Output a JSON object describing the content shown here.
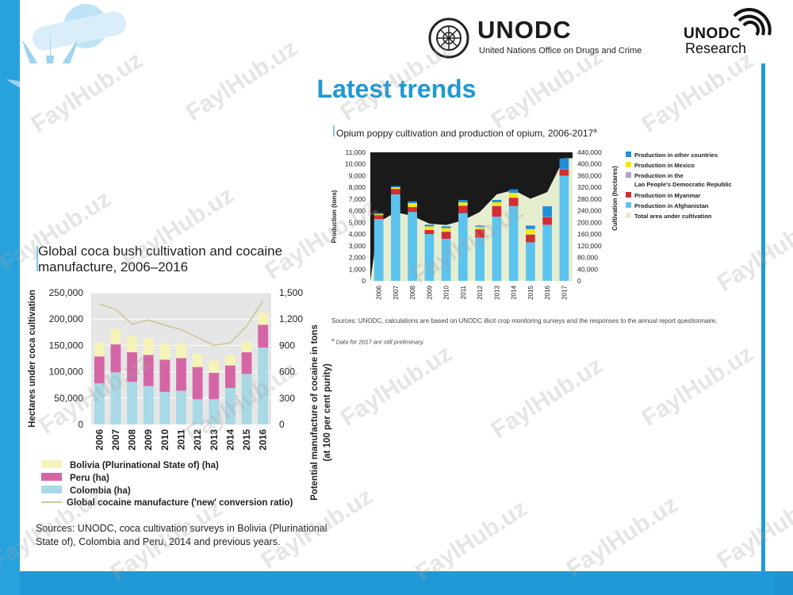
{
  "slide": {
    "title": "Latest trends"
  },
  "logos": {
    "unodc_title": "UNODC",
    "unodc_subtitle": "United Nations Office on Drugs and Crime",
    "research_title": "UNODC",
    "research_subtitle": "Research"
  },
  "watermark": "FaylHub.uz",
  "colors": {
    "background_blue": "#1f9ad6",
    "title_blue": "#1f98d4",
    "bolivia": "#f5f3b8",
    "peru": "#d566a6",
    "colombia": "#a9d8e6",
    "cocaine_line": "#cdc79a",
    "opium_bg": "#1a1a1a",
    "area": "#e6eed0",
    "afghanistan": "#5cc3ef",
    "myanmar": "#d52b35",
    "lao": "#b99bc8",
    "mexico": "#f6e51a",
    "other": "#1e8fd8"
  },
  "chart_data": [
    {
      "type": "bar",
      "stacked": true,
      "title": "Global coca bush cultivation and cocaine manufacture, 2006–2016",
      "ylabel": "Hectares under coca cultivation",
      "y2label": "Potential manufacture of cocaine in tons (at 100 per cent purity)",
      "ylim": [
        0,
        250000
      ],
      "y2lim": [
        0,
        1500
      ],
      "yticks": [
        "0",
        "50,000",
        "100,000",
        "150,000",
        "200,000",
        "250,000"
      ],
      "y2ticks": [
        "0",
        "300",
        "600",
        "900",
        "1,200",
        "1,500"
      ],
      "categories": [
        "2006",
        "2007",
        "2008",
        "2009",
        "2010",
        "2011",
        "2012",
        "2013",
        "2014",
        "2015",
        "2016"
      ],
      "series": [
        {
          "name": "Colombia (ha)",
          "values": [
            78000,
            99000,
            81000,
            73000,
            62000,
            64000,
            48000,
            48000,
            69000,
            96000,
            146000
          ]
        },
        {
          "name": "Peru (ha)",
          "values": [
            51000,
            53000,
            56000,
            59000,
            61000,
            62000,
            61000,
            50000,
            43000,
            41000,
            43000
          ]
        },
        {
          "name": "Bolivia (Plurinational State of) (ha)",
          "values": [
            27000,
            29000,
            30000,
            31000,
            31000,
            27000,
            25000,
            23000,
            20000,
            20000,
            23000
          ]
        },
        {
          "name": "Global cocaine manufacture ('new' conversion ratio)",
          "axis": "right",
          "type": "line",
          "values": [
            1370,
            1310,
            1140,
            1190,
            1130,
            1080,
            990,
            900,
            930,
            1120,
            1410
          ]
        }
      ],
      "legend": [
        "Bolivia (Plurinational State of) (ha)",
        "Peru (ha)",
        "Colombia (ha)",
        "Global cocaine manufacture ('new' conversion ratio)"
      ],
      "legend_position": "bottom",
      "source": "Sources: UNODC, coca cultivation surveys in Bolivia (Plurinational State of), Colombia and Peru, 2014 and previous years."
    },
    {
      "type": "bar",
      "stacked": true,
      "title": "Opium poppy cultivation and production of opium, 2006-2017",
      "title_sup": "a",
      "ylabel": "Production (tons)",
      "y2label": "Cultivation (hectares)",
      "ylim": [
        0,
        11000
      ],
      "y2lim": [
        0,
        440000
      ],
      "yticks": [
        "0",
        "1,000",
        "2,000",
        "3,000",
        "4,000",
        "5,000",
        "6,000",
        "7,000",
        "8,000",
        "9,000",
        "10,000",
        "11,000"
      ],
      "y2ticks": [
        "0",
        "40,000",
        "80,000",
        "120,000",
        "160,000",
        "200,000",
        "240,000",
        "280,000",
        "320,000",
        "360,000",
        "400,000",
        "440,000"
      ],
      "categories": [
        "2006",
        "2007",
        "2008",
        "2009",
        "2010",
        "2011",
        "2012",
        "2013",
        "2014",
        "2015",
        "2016",
        "2017"
      ],
      "series": [
        {
          "name": "Production in Afghanistan",
          "values": [
            5300,
            7400,
            5900,
            4000,
            3600,
            5800,
            3700,
            5500,
            6400,
            3300,
            4800,
            9000
          ]
        },
        {
          "name": "Production in Myanmar",
          "values": [
            300,
            450,
            400,
            350,
            600,
            600,
            700,
            900,
            700,
            650,
            650,
            550
          ]
        },
        {
          "name": "Production in the Lao People's Democratic Republic",
          "values": [
            20,
            10,
            10,
            10,
            20,
            25,
            25,
            25,
            30,
            30,
            30,
            30
          ]
        },
        {
          "name": "Production in Mexico",
          "values": [
            100,
            150,
            350,
            300,
            300,
            300,
            200,
            300,
            400,
            450,
            0,
            0
          ]
        },
        {
          "name": "Production in other countries",
          "values": [
            100,
            100,
            150,
            150,
            150,
            200,
            100,
            200,
            300,
            300,
            900,
            900
          ]
        },
        {
          "name": "Total area under cultivation",
          "axis": "right",
          "type": "area",
          "values": [
            201000,
            235000,
            222000,
            196000,
            191000,
            207000,
            236000,
            296000,
            311000,
            281000,
            304000,
            420000
          ]
        }
      ],
      "legend": [
        "Production in other countries",
        "Production in Mexico",
        "Production in the Lao People's Democratic Republic",
        "Production in Myanmar",
        "Production in Afghanistan",
        "Total area under cultivation"
      ],
      "legend_position": "right",
      "source": "Sources: UNODC, calculations are based on UNODC illicit crop monitoring surveys and the responses to the annual report questionnaire.",
      "note_mark": "a",
      "note": "Data for 2017 are still preliminary."
    }
  ]
}
